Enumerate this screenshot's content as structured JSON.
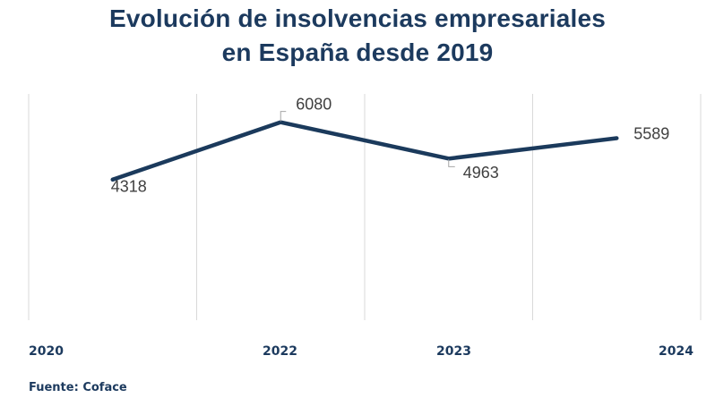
{
  "chart_data": {
    "type": "line",
    "title": "Evolución de insolvencias empresariales en España desde 2019",
    "title_lines": [
      "Evolución de insolvencias empresariales",
      "en España desde 2019"
    ],
    "categories": [
      "2020",
      "2022",
      "2023",
      "2024"
    ],
    "series": [
      {
        "name": "Insolvencias empresariales",
        "values": [
          4318,
          6080,
          4963,
          5589
        ],
        "color": "#1b3a5c"
      }
    ],
    "data_labels": [
      "4318",
      "6080",
      "4963",
      "5589"
    ],
    "xlabel": "",
    "ylabel": "",
    "ylim": [
      0,
      6950
    ],
    "grid": "vertical",
    "legend": "none",
    "gridline_color": "#d9d9d9",
    "label_color": "#1c3a5e",
    "data_label_color": "#404040"
  },
  "source": "Fuente: Coface"
}
